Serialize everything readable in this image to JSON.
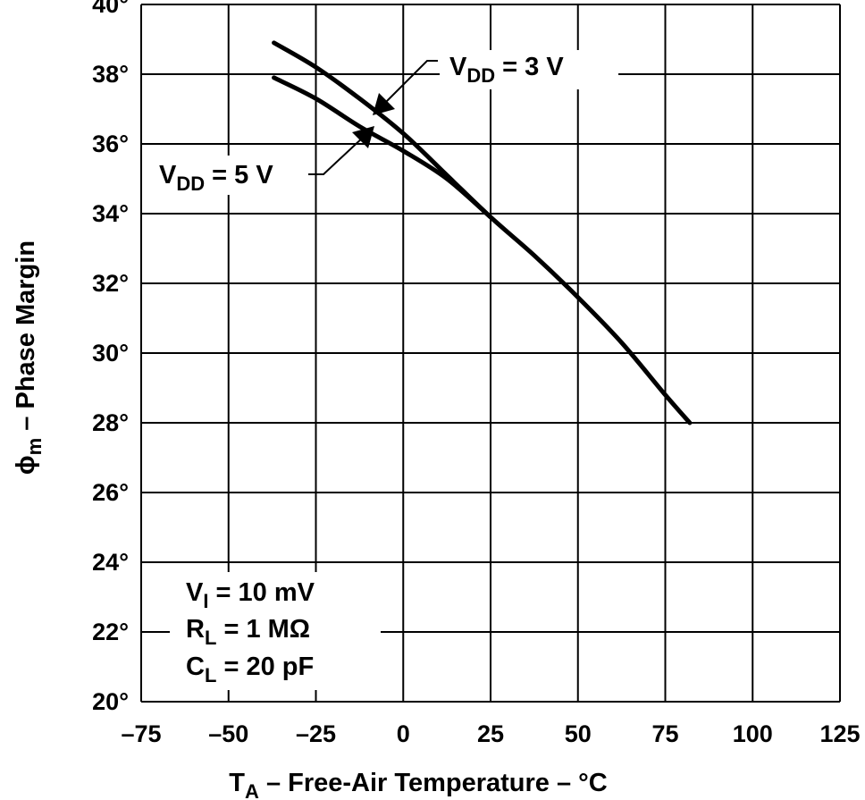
{
  "chart_data": {
    "type": "line",
    "title": "",
    "xlabel": {
      "main": "T",
      "sub": "A",
      "rest": " – Free-Air Temperature – °C"
    },
    "ylabel": {
      "main": "ϕ",
      "sub": "m",
      "rest": " – Phase Margin"
    },
    "xlim": [
      -75,
      125
    ],
    "ylim": [
      20,
      40
    ],
    "grid": true,
    "x_ticks": [
      -75,
      -50,
      -25,
      0,
      25,
      50,
      75,
      100,
      125
    ],
    "x_tick_labels": [
      "–75",
      "–50",
      "–25",
      "0",
      "25",
      "50",
      "75",
      "100",
      "125"
    ],
    "y_ticks": [
      20,
      22,
      24,
      26,
      28,
      30,
      32,
      34,
      36,
      38,
      40
    ],
    "y_tick_labels": [
      "20°",
      "22°",
      "24°",
      "26°",
      "28°",
      "30°",
      "32°",
      "34°",
      "36°",
      "38°",
      "40°"
    ],
    "series": [
      {
        "name": "VDD = 3 V",
        "label": {
          "main": "V",
          "sub": "DD",
          "rest": " = 3 V"
        },
        "x": [
          -37,
          -25,
          -12.5,
          0,
          12.5,
          25,
          37.5,
          50,
          62.5,
          75,
          82
        ],
        "y": [
          38.9,
          38.2,
          37.3,
          36.3,
          35.1,
          33.9,
          32.8,
          31.6,
          30.3,
          28.8,
          28.0
        ]
      },
      {
        "name": "VDD = 5 V",
        "label": {
          "main": "V",
          "sub": "DD",
          "rest": " = 5 V"
        },
        "x": [
          -37,
          -25,
          -12.5,
          0,
          12.5,
          25
        ],
        "y": [
          37.9,
          37.3,
          36.5,
          35.8,
          35.0,
          33.9
        ]
      }
    ],
    "annotations": [
      {
        "main": "V",
        "sub": "I",
        "rest": " = 10 mV"
      },
      {
        "main": "R",
        "sub": "L",
        "rest": " = 1 MΩ"
      },
      {
        "main": "C",
        "sub": "L",
        "rest": " = 20 pF"
      }
    ]
  }
}
